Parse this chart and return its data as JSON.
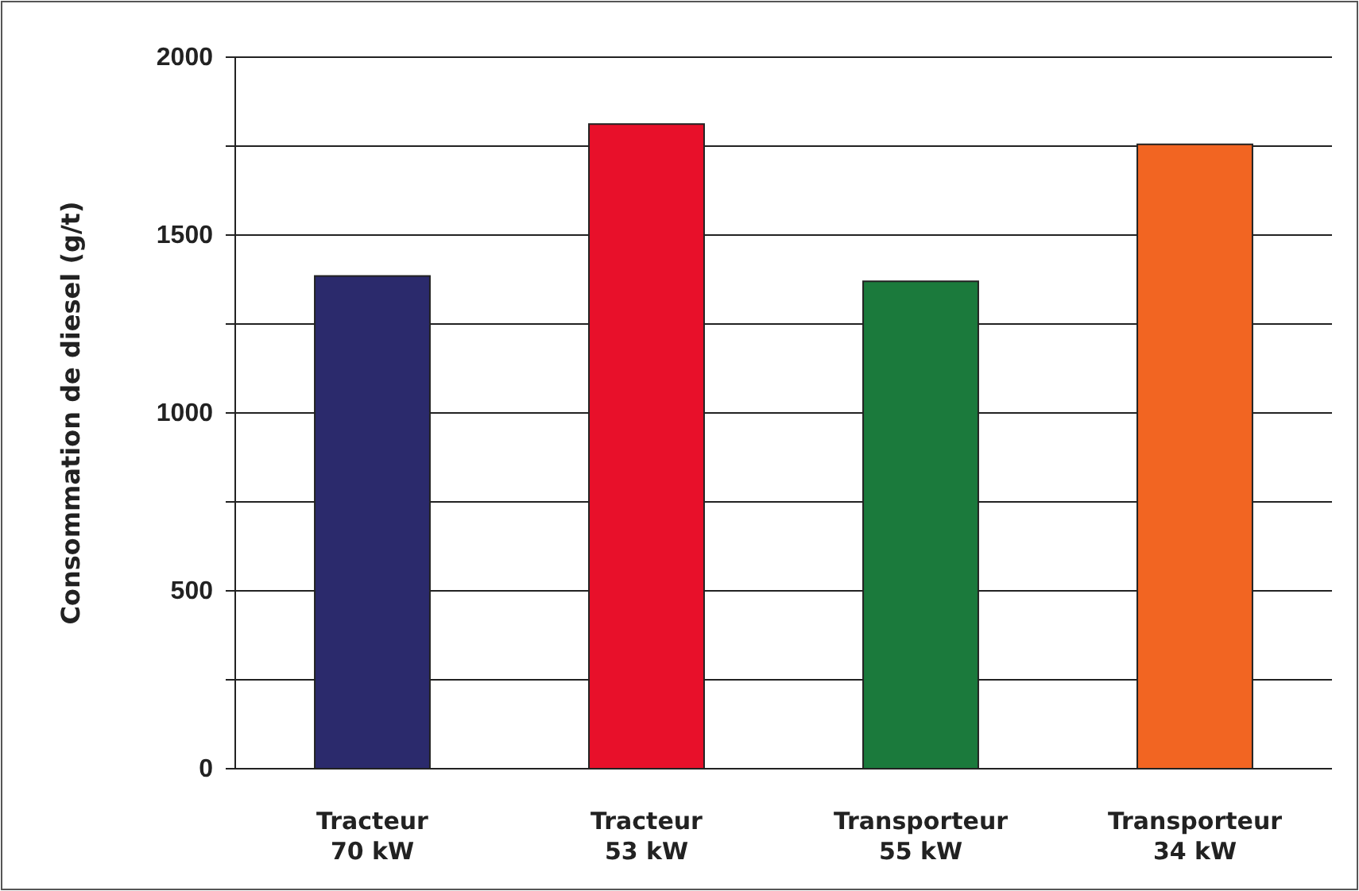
{
  "chart_data": {
    "type": "bar",
    "ylabel": "Consommation de diesel (g/t)",
    "categories": [
      "Tracteur 70 kW",
      "Tracteur 53 kW",
      "Transporteur 55 kW",
      "Transporteur 34 kW"
    ],
    "values": [
      1385,
      1812,
      1370,
      1755
    ],
    "colors": [
      "#2b2a6c",
      "#e8102a",
      "#1b7a3c",
      "#f26522"
    ],
    "ylim": [
      0,
      2000
    ],
    "yticks": [
      0,
      {
        "value": 250,
        "label": null
      },
      500,
      {
        "value": 750,
        "label": null
      },
      1000,
      {
        "value": 1250,
        "label": null
      },
      1500,
      {
        "value": 1750,
        "label": null
      },
      2000
    ],
    "grid": "y"
  }
}
